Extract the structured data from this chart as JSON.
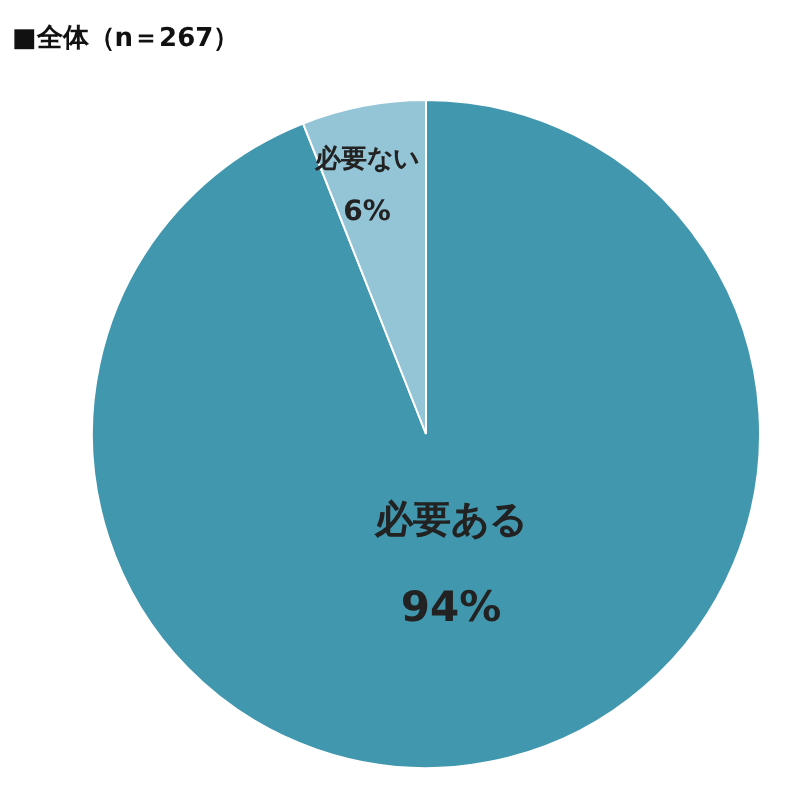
{
  "chart_data": {
    "type": "pie",
    "title": "■全体（n＝267）",
    "categories": [
      "必要ある",
      "必要ない"
    ],
    "values": [
      94,
      6
    ],
    "value_labels": [
      "94%",
      "6%"
    ],
    "colors": [
      "#4197ad",
      "#93c5d6"
    ],
    "legend": false
  }
}
